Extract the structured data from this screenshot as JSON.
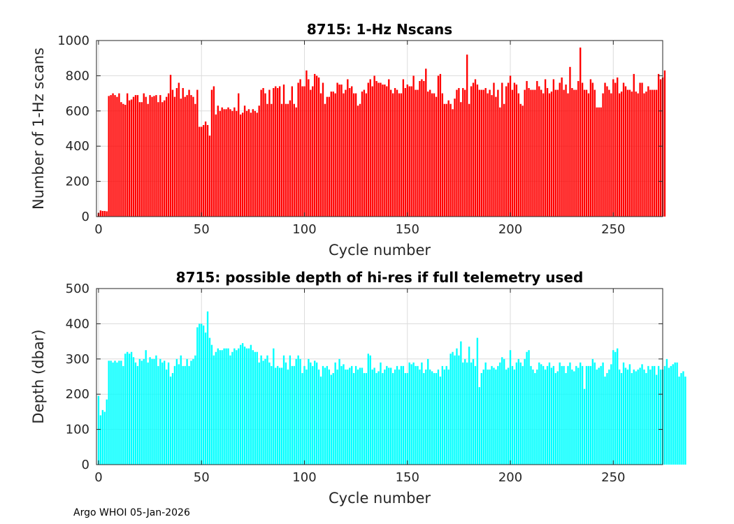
{
  "footer": "Argo WHOI 05-Jan-2026",
  "chart_data": [
    {
      "type": "bar",
      "title": "8715: 1-Hz Nscans",
      "xlabel": "Cycle number",
      "ylabel": "Number of 1-Hz scans",
      "xlim": [
        -1,
        274
      ],
      "ylim": [
        0,
        1000
      ],
      "xticks": [
        0,
        50,
        100,
        150,
        200,
        250
      ],
      "yticks": [
        0,
        200,
        400,
        600,
        800,
        1000
      ],
      "grid": true,
      "color": "#ff0000",
      "x_start": 0,
      "values": [
        20,
        35,
        32,
        32,
        30,
        685,
        690,
        700,
        690,
        680,
        700,
        650,
        640,
        635,
        700,
        660,
        665,
        680,
        690,
        690,
        650,
        650,
        700,
        680,
        640,
        690,
        680,
        685,
        690,
        650,
        690,
        650,
        660,
        680,
        700,
        805,
        720,
        680,
        730,
        760,
        670,
        730,
        680,
        690,
        720,
        690,
        680,
        640,
        720,
        510,
        510,
        520,
        540,
        520,
        460,
        720,
        740,
        580,
        630,
        600,
        620,
        610,
        610,
        620,
        610,
        600,
        620,
        600,
        700,
        580,
        590,
        630,
        600,
        610,
        590,
        610,
        600,
        590,
        630,
        720,
        730,
        700,
        640,
        720,
        640,
        730,
        740,
        730,
        740,
        640,
        750,
        640,
        640,
        660,
        740,
        640,
        620,
        760,
        780,
        740,
        740,
        830,
        780,
        720,
        740,
        810,
        800,
        790,
        700,
        760,
        640,
        680,
        680,
        710,
        710,
        700,
        760,
        750,
        750,
        700,
        720,
        780,
        730,
        740,
        700,
        700,
        630,
        640,
        710,
        720,
        700,
        760,
        780,
        740,
        800,
        770,
        760,
        760,
        750,
        750,
        740,
        780,
        720,
        700,
        730,
        720,
        700,
        700,
        780,
        730,
        750,
        740,
        740,
        800,
        720,
        720,
        770,
        780,
        770,
        840,
        710,
        720,
        700,
        700,
        680,
        800,
        810,
        700,
        640,
        640,
        660,
        640,
        610,
        670,
        720,
        730,
        650,
        730,
        720,
        920,
        640,
        740,
        760,
        780,
        750,
        720,
        720,
        720,
        730,
        700,
        720,
        690,
        760,
        680,
        720,
        620,
        760,
        640,
        740,
        760,
        800,
        720,
        760,
        750,
        700,
        640,
        630,
        720,
        770,
        730,
        720,
        720,
        720,
        770,
        740,
        720,
        700,
        780,
        730,
        700,
        710,
        780,
        720,
        720,
        760,
        790,
        720,
        750,
        700,
        850,
        730,
        720,
        720,
        770,
        960,
        760,
        720,
        720,
        700,
        780,
        760,
        720,
        620,
        620,
        620,
        700,
        760,
        740,
        720,
        700,
        780,
        760,
        790,
        700,
        710,
        760,
        740,
        720,
        720,
        710,
        810,
        710,
        700,
        760,
        760,
        700,
        710,
        740,
        720,
        720,
        720,
        720,
        810,
        780,
        790,
        830
      ]
    },
    {
      "type": "bar",
      "title": "8715: possible depth of hi-res if full telemetry used",
      "xlabel": "Cycle number",
      "ylabel": "Depth (dbar)",
      "xlim": [
        -1,
        274
      ],
      "ylim": [
        0,
        500
      ],
      "xticks": [
        0,
        50,
        100,
        150,
        200,
        250
      ],
      "yticks": [
        0,
        100,
        200,
        300,
        400,
        500
      ],
      "grid": true,
      "color": "#00ffff",
      "x_start": 0,
      "values": [
        195,
        140,
        155,
        150,
        185,
        295,
        295,
        290,
        295,
        290,
        295,
        295,
        280,
        315,
        320,
        315,
        320,
        305,
        290,
        280,
        300,
        295,
        300,
        325,
        290,
        305,
        300,
        300,
        310,
        280,
        300,
        290,
        295,
        270,
        290,
        250,
        260,
        280,
        300,
        285,
        310,
        280,
        280,
        300,
        280,
        295,
        300,
        310,
        390,
        400,
        400,
        395,
        375,
        435,
        360,
        340,
        310,
        320,
        330,
        325,
        325,
        330,
        330,
        330,
        310,
        320,
        330,
        325,
        330,
        340,
        345,
        335,
        330,
        330,
        340,
        325,
        320,
        320,
        290,
        310,
        295,
        300,
        310,
        290,
        280,
        330,
        275,
        280,
        275,
        275,
        310,
        290,
        270,
        310,
        280,
        280,
        300,
        310,
        300,
        260,
        280,
        270,
        300,
        290,
        280,
        295,
        290,
        270,
        250,
        280,
        275,
        280,
        270,
        255,
        260,
        290,
        270,
        300,
        280,
        285,
        270,
        270,
        275,
        280,
        260,
        280,
        270,
        275,
        275,
        260,
        260,
        315,
        310,
        270,
        275,
        260,
        265,
        290,
        260,
        270,
        280,
        275,
        275,
        260,
        270,
        280,
        270,
        280,
        280,
        260,
        260,
        290,
        285,
        290,
        280,
        280,
        270,
        290,
        260,
        270,
        300,
        270,
        265,
        260,
        260,
        270,
        250,
        280,
        270,
        280,
        270,
        315,
        320,
        310,
        330,
        310,
        350,
        290,
        300,
        290,
        335,
        290,
        300,
        280,
        360,
        220,
        260,
        270,
        290,
        270,
        270,
        280,
        275,
        270,
        280,
        290,
        305,
        300,
        270,
        275,
        325,
        280,
        270,
        290,
        300,
        290,
        280,
        300,
        320,
        325,
        280,
        270,
        260,
        270,
        290,
        285,
        280,
        270,
        280,
        290,
        275,
        280,
        260,
        265,
        290,
        280,
        280,
        260,
        280,
        290,
        270,
        265,
        280,
        275,
        290,
        280,
        215,
        280,
        280,
        280,
        300,
        290,
        270,
        275,
        280,
        290,
        250,
        260,
        270,
        285,
        325,
        320,
        330,
        270,
        260,
        290,
        275,
        270,
        285,
        260,
        270,
        265,
        270,
        275,
        285,
        270,
        260,
        280,
        270,
        280,
        280,
        255,
        280,
        270,
        270,
        280,
        300,
        275,
        280,
        285,
        290,
        290,
        250,
        260,
        265,
        250
      ]
    }
  ]
}
